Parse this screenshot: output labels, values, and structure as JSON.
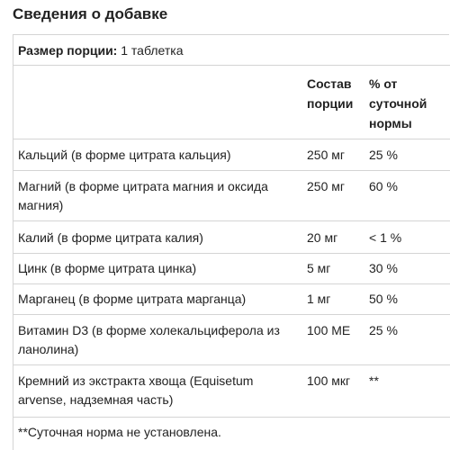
{
  "title": "Сведения о добавке",
  "serving": {
    "label": "Размер порции:",
    "value": "1 таблетка"
  },
  "header": {
    "col2": [
      "Состав",
      "порции"
    ],
    "col3": [
      "% от",
      "суточной",
      "нормы"
    ]
  },
  "rows": [
    {
      "name": "Кальций (в форме цитрата кальция)",
      "amount": "250 мг",
      "dv": "25 %"
    },
    {
      "name": "Магний (в форме цитрата магния и оксида магния)",
      "amount": "250 мг",
      "dv": "60 %"
    },
    {
      "name": "Калий (в форме цитрата калия)",
      "amount": "20 мг",
      "dv": "< 1 %"
    },
    {
      "name": "Цинк (в форме цитрата цинка)",
      "amount": "5 мг",
      "dv": "30 %"
    },
    {
      "name": "Марганец (в форме цитрата марганца)",
      "amount": "1 мг",
      "dv": "50 %"
    },
    {
      "name": "Витамин D3 (в форме холекальциферола из ланолина)",
      "amount": "100 МЕ",
      "dv": "25 %"
    },
    {
      "name": "Кремний из экстракта хвоща (Equisetum arvense, надземная часть)",
      "amount": "100 мкг",
      "dv": "**"
    }
  ],
  "footnote": "**Суточная норма не установлена."
}
